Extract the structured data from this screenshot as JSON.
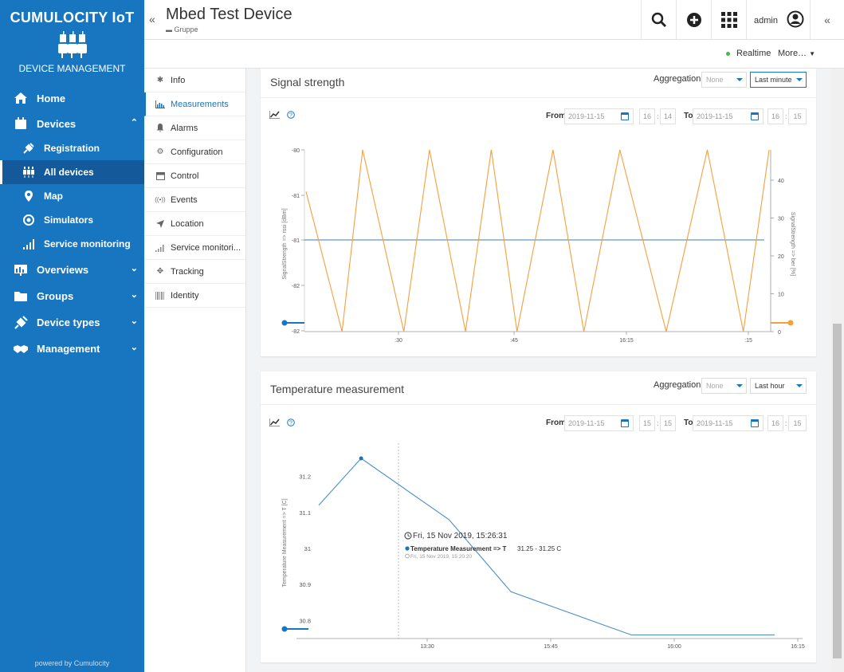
{
  "brand": {
    "title": "CUMULOCITY IoT",
    "subtitle": "DEVICE MANAGEMENT",
    "powered": "powered by Cumulocity"
  },
  "nav": {
    "home": "Home",
    "devices": "Devices",
    "devices_sub": [
      "Registration",
      "All devices",
      "Map",
      "Simulators",
      "Service monitoring"
    ],
    "overviews": "Overviews",
    "groups": "Groups",
    "device_types": "Device types",
    "management": "Management"
  },
  "header": {
    "title": "Mbed Test Device",
    "group": "Gruppe",
    "user": "admin"
  },
  "subheader": {
    "realtime": "Realtime",
    "more": "More…"
  },
  "tabs": [
    "Info",
    "Measurements",
    "Alarms",
    "Configuration",
    "Control",
    "Events",
    "Location",
    "Service monitori...",
    "Tracking",
    "Identity"
  ],
  "signal": {
    "title": "Signal strength",
    "aggregation_label": "Aggregation",
    "aggregation": "None",
    "interval": "Last minute",
    "from_label": "From",
    "to_label": "To",
    "from_date": "2019-11-15",
    "from_h": "16",
    "from_m": "14",
    "to_date": "2019-11-15",
    "to_h": "16",
    "to_m": "15",
    "left_axis_label": "SignalStrength => rssi [dBm]",
    "right_axis_label": "SignalStrength => ber [%]"
  },
  "temperature": {
    "title": "Temperature measurement",
    "aggregation_label": "Aggregation",
    "aggregation": "None",
    "interval": "Last hour",
    "from_label": "From",
    "to_label": "To",
    "from_date": "2019-11-15",
    "from_h": "15",
    "from_m": "15",
    "to_date": "2019-11-15",
    "to_h": "16",
    "to_m": "15",
    "axis_label": "Temperature Measurement => T [C]",
    "tooltip_time": "Fri, 15 Nov 2019, 15:26:31",
    "tooltip_series": "Temperature Measurement => T",
    "tooltip_value": "31.25 - 31.25 C",
    "tooltip_sub": "Fri, 15 Nov 2019, 15:20:20"
  },
  "colors": {
    "brand": "#1776bf",
    "orange": "#f5a03c",
    "blue_line": "#4a8fc6"
  },
  "chart_data": [
    {
      "type": "line",
      "title": "Signal strength",
      "x_ticks": [
        ":30",
        ":45",
        "16:15",
        ":15"
      ],
      "y_left": {
        "label": "SignalStrength => rssi [dBm]",
        "ticks": [
          "-80",
          "-81",
          "-81",
          "-82",
          "-82"
        ]
      },
      "y_right": {
        "label": "SignalStrength => ber [%]",
        "ticks": [
          "40",
          "30",
          "20",
          "10",
          "0"
        ],
        "range": [
          0,
          48
        ]
      },
      "series": [
        {
          "name": "SignalStrength => rssi [dBm]",
          "axis": "left",
          "constant": -81
        },
        {
          "name": "SignalStrength => ber [%]",
          "axis": "right",
          "x": [
            0,
            7,
            11,
            19,
            24,
            31,
            36,
            41,
            48,
            54,
            61,
            70,
            78,
            85,
            90
          ],
          "y": [
            37,
            0,
            48,
            0,
            48,
            0,
            48,
            0,
            48,
            0,
            48,
            0,
            48,
            0,
            48
          ]
        }
      ]
    },
    {
      "type": "line",
      "title": "Temperature measurement",
      "x_ticks": [
        "13:30",
        "15:45",
        "16:00",
        "16:15"
      ],
      "y": {
        "label": "Temperature Measurement => T [C]",
        "ticks": [
          "31.2",
          "31.1",
          "31",
          "30.9",
          "30.8"
        ],
        "range": [
          30.75,
          31.27
        ]
      },
      "series": [
        {
          "name": "Temperature Measurement => T",
          "x": [
            0,
            13,
            40,
            59,
            96,
            140
          ],
          "y": [
            31.12,
            31.25,
            31.08,
            30.88,
            30.76,
            30.76
          ]
        }
      ]
    }
  ]
}
